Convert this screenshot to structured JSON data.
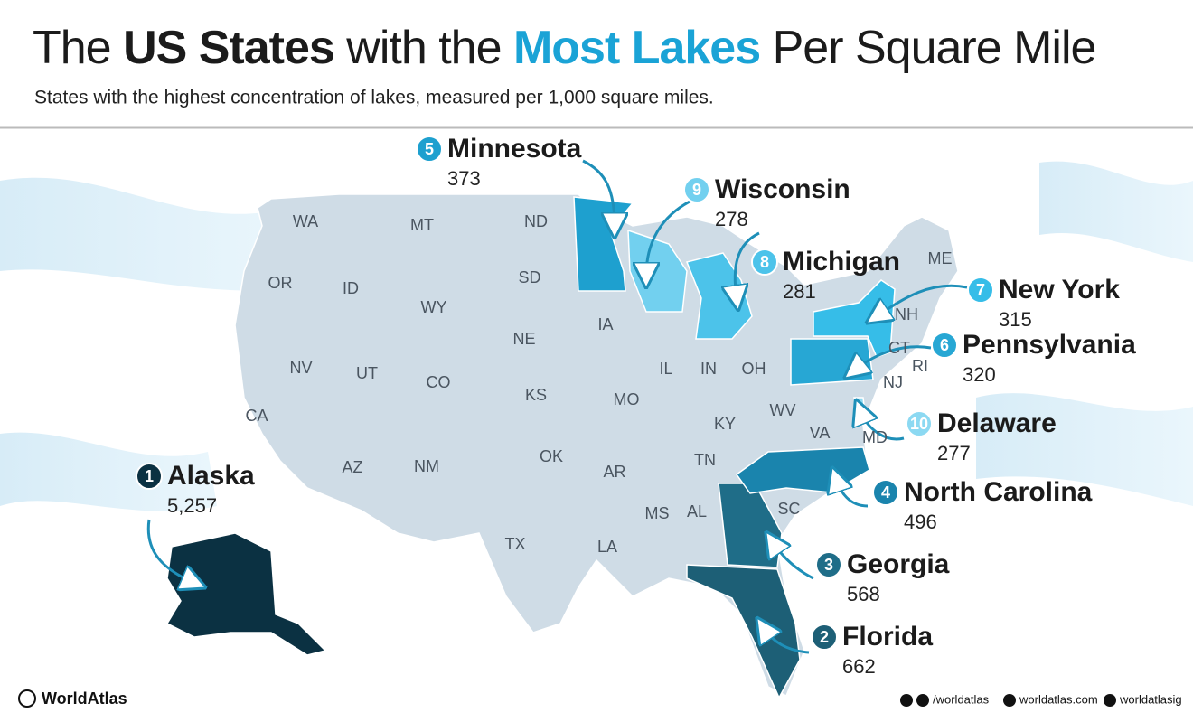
{
  "header": {
    "title_parts": [
      "The ",
      "US States",
      " with the ",
      "Most Lakes",
      " Per Square Mile"
    ],
    "subtitle": "States with the highest concentration of lakes, measured per 1,000 square miles."
  },
  "rankings": [
    {
      "rank": 1,
      "state": "Alaska",
      "value": 5257,
      "value_label": "5,257",
      "color": "#0b3142"
    },
    {
      "rank": 2,
      "state": "Florida",
      "value": 662,
      "color": "#1d5f76"
    },
    {
      "rank": 3,
      "state": "Georgia",
      "value": 568,
      "color": "#1f6d88"
    },
    {
      "rank": 4,
      "state": "North Carolina",
      "value": 496,
      "color": "#1a84ad"
    },
    {
      "rank": 5,
      "state": "Minnesota",
      "value": 373,
      "color": "#1ea0cf"
    },
    {
      "rank": 6,
      "state": "Pennsylvania",
      "value": 320,
      "color": "#27a7d4"
    },
    {
      "rank": 7,
      "state": "New York",
      "value": 315,
      "color": "#36bde8"
    },
    {
      "rank": 8,
      "state": "Michigan",
      "value": 281,
      "color": "#4cc3ea"
    },
    {
      "rank": 9,
      "state": "Wisconsin",
      "value": 278,
      "color": "#72d0ef"
    },
    {
      "rank": 10,
      "state": "Delaware",
      "value": 277,
      "color": "#8cd9f2"
    }
  ],
  "state_labels": [
    "WA",
    "MT",
    "ND",
    "OR",
    "ID",
    "SD",
    "WY",
    "IA",
    "NE",
    "NV",
    "UT",
    "CO",
    "KS",
    "IL",
    "IN",
    "OH",
    "MO",
    "KY",
    "WV",
    "VA",
    "CA",
    "AZ",
    "NM",
    "OK",
    "AR",
    "TN",
    "MS",
    "AL",
    "SC",
    "TX",
    "LA",
    "ME",
    "NH",
    "CT",
    "RI",
    "NJ",
    "MD"
  ],
  "footer": {
    "brand": "WorldAtlas",
    "handle": "/worldatlas",
    "site": "worldatlas.com",
    "instagram": "worldatlasig"
  }
}
